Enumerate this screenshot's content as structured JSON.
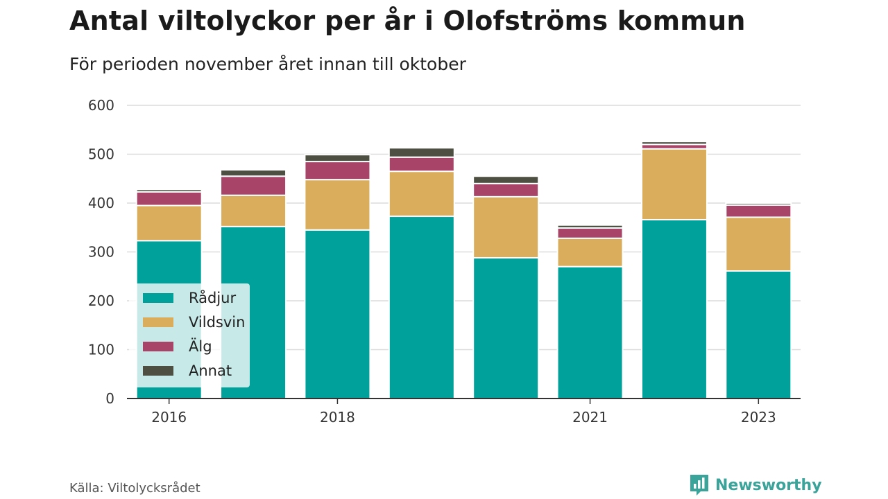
{
  "title": "Antal viltolyckor per år i Olofströms kommun",
  "subtitle": "För perioden november året innan till oktober",
  "source": "Källa: Viltolycksrådet",
  "brand": {
    "name": "Newsworthy",
    "icon": "bar-chart-speech-bubble-icon",
    "color": "#3aa39a"
  },
  "chart_data": {
    "type": "bar",
    "stacked": true,
    "categories": [
      "2016",
      "2017",
      "2018",
      "2019",
      "2020",
      "2021",
      "2022",
      "2023"
    ],
    "x_tick_labels": [
      "2016",
      "",
      "2018",
      "",
      "",
      "2021",
      "",
      "2023"
    ],
    "ylim": [
      0,
      600
    ],
    "yticks": [
      0,
      100,
      200,
      300,
      400,
      500,
      600
    ],
    "grid": true,
    "legend_position": "bottom-left",
    "series": [
      {
        "name": "Rådjur",
        "color": "#00a19a",
        "values": [
          323,
          352,
          345,
          373,
          288,
          270,
          366,
          261
        ]
      },
      {
        "name": "Vildsvin",
        "color": "#d9ad5b",
        "values": [
          72,
          64,
          103,
          92,
          125,
          58,
          145,
          110
        ]
      },
      {
        "name": "Älg",
        "color": "#a84467",
        "values": [
          28,
          39,
          37,
          29,
          27,
          21,
          9,
          25
        ]
      },
      {
        "name": "Annat",
        "color": "#4d4f42",
        "values": [
          5,
          13,
          14,
          19,
          15,
          6,
          6,
          4
        ]
      }
    ]
  }
}
